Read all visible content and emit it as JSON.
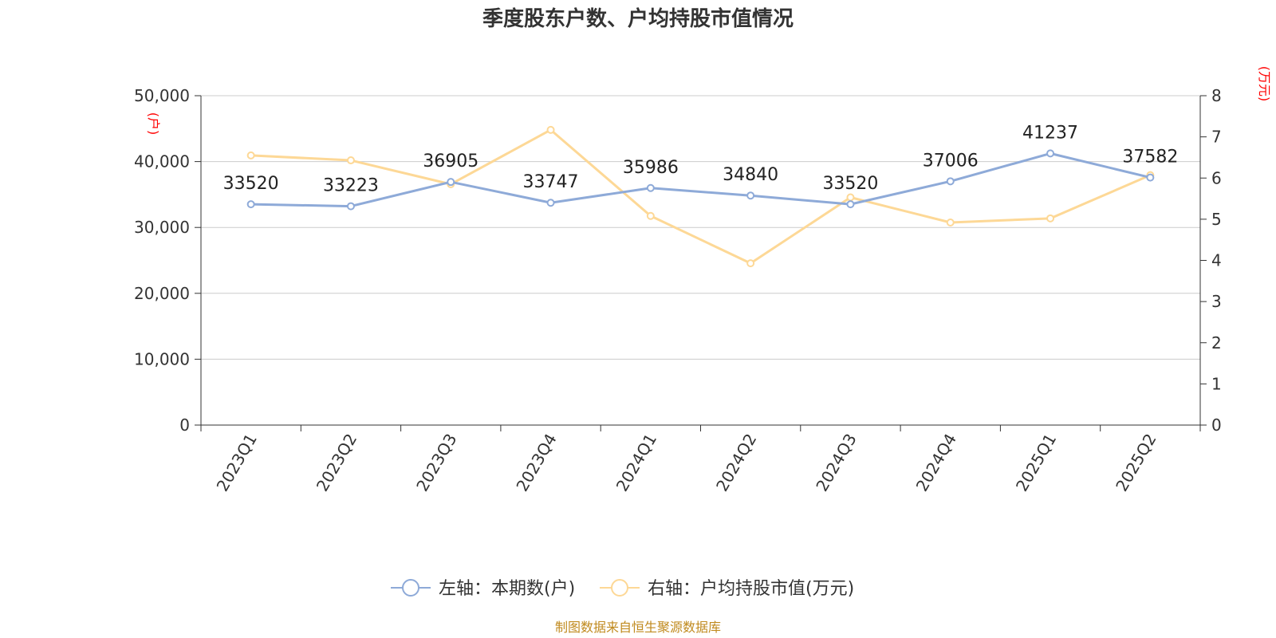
{
  "title": "季度股东户数、户均持股市值情况",
  "source": "制图数据来自恒生聚源数据库",
  "chart_data": {
    "type": "line",
    "categories": [
      "2023Q1",
      "2023Q2",
      "2023Q3",
      "2023Q4",
      "2024Q1",
      "2024Q2",
      "2024Q3",
      "2024Q4",
      "2025Q1",
      "2025Q2"
    ],
    "left_axis": {
      "unit": "(户)",
      "range": [
        0,
        50000
      ],
      "ticks": [
        "0",
        "10,000",
        "20,000",
        "30,000",
        "40,000",
        "50,000"
      ]
    },
    "right_axis": {
      "unit": "(万元)",
      "range": [
        0,
        8
      ],
      "ticks": [
        "0",
        "1",
        "2",
        "3",
        "4",
        "5",
        "6",
        "7",
        "8"
      ]
    },
    "grid": true,
    "legend_position": "bottom-center",
    "series": [
      {
        "name": "左轴：本期数(户)",
        "axis": "left",
        "color": "#8eaad8",
        "labels_visible": true,
        "values": [
          33520,
          33223,
          36905,
          33747,
          35986,
          34840,
          33520,
          37006,
          41237,
          37582
        ]
      },
      {
        "name": "右轴：户均持股市值(万元)",
        "axis": "right",
        "color": "#fdd896",
        "labels_visible": false,
        "values": [
          6.55,
          6.43,
          5.85,
          7.17,
          5.08,
          3.93,
          5.53,
          4.92,
          5.02,
          6.07
        ]
      }
    ]
  }
}
